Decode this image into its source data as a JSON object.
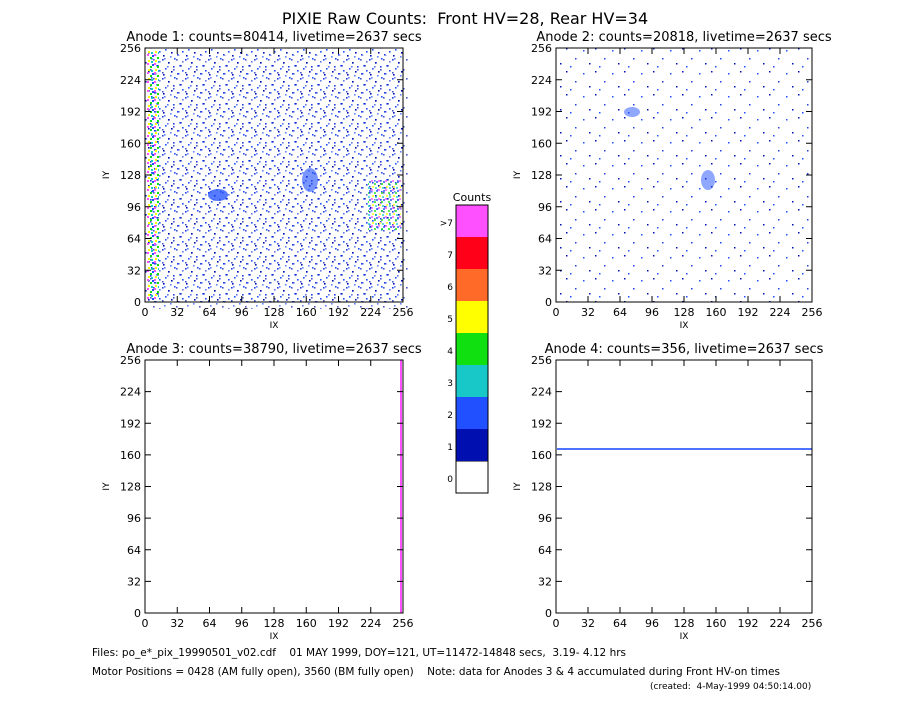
{
  "title": "PIXIE Raw Counts:  Front HV=28, Rear HV=34",
  "chart_data": [
    {
      "type": "heatmap",
      "title": "Anode 1: counts=80414, livetime=2637 secs",
      "xlabel": "IX",
      "ylabel": "IY",
      "xlim": [
        0,
        256
      ],
      "ylim": [
        0,
        256
      ],
      "xticks": [
        0,
        32,
        64,
        96,
        128,
        160,
        192,
        224,
        256
      ],
      "yticks": [
        0,
        32,
        64,
        96,
        128,
        160,
        192,
        224,
        256
      ]
    },
    {
      "type": "heatmap",
      "title": "Anode 2: counts=20818, livetime=2637 secs",
      "xlabel": "IX",
      "ylabel": "IY",
      "xlim": [
        0,
        256
      ],
      "ylim": [
        0,
        256
      ],
      "xticks": [
        0,
        32,
        64,
        96,
        128,
        160,
        192,
        224,
        256
      ],
      "yticks": [
        0,
        32,
        64,
        96,
        128,
        160,
        192,
        224,
        256
      ]
    },
    {
      "type": "heatmap",
      "title": "Anode 3: counts=38790, livetime=2637 secs",
      "xlabel": "IX",
      "ylabel": "IY",
      "xlim": [
        0,
        256
      ],
      "ylim": [
        0,
        256
      ],
      "xticks": [
        0,
        32,
        64,
        96,
        128,
        160,
        192,
        224,
        256
      ],
      "yticks": [
        0,
        32,
        64,
        96,
        128,
        160,
        192,
        224,
        256
      ]
    },
    {
      "type": "heatmap",
      "title": "Anode 4: counts=356, livetime=2637 secs",
      "xlabel": "IX",
      "ylabel": "IY",
      "xlim": [
        0,
        256
      ],
      "ylim": [
        0,
        256
      ],
      "xticks": [
        0,
        32,
        64,
        96,
        128,
        160,
        192,
        224,
        256
      ],
      "yticks": [
        0,
        32,
        64,
        96,
        128,
        160,
        192,
        224,
        256
      ]
    },
    {
      "type": "colorbar",
      "title": "Counts",
      "categories": [
        "0",
        "1",
        "2",
        "3",
        "4",
        "5",
        "6",
        "7",
        ">7"
      ],
      "colors": [
        "#ffffff",
        "#0010b0",
        "#2050ff",
        "#18c8c8",
        "#10e010",
        "#ffff00",
        "#ff6a28",
        "#ff0018",
        "#ff50ff"
      ]
    }
  ],
  "footer": [
    "Files: po_e*_pix_19990501_v02.cdf    01 MAY 1999, DOY=121, UT=11472-14848 secs,  3.19- 4.12 hrs",
    "Motor Positions = 0428 (AM fully open), 3560 (BM fully open)    Note: data for Anodes 3 & 4 accumulated during Front HV-on times",
    "(created:  4-May-1999 04:50:14.00)"
  ]
}
